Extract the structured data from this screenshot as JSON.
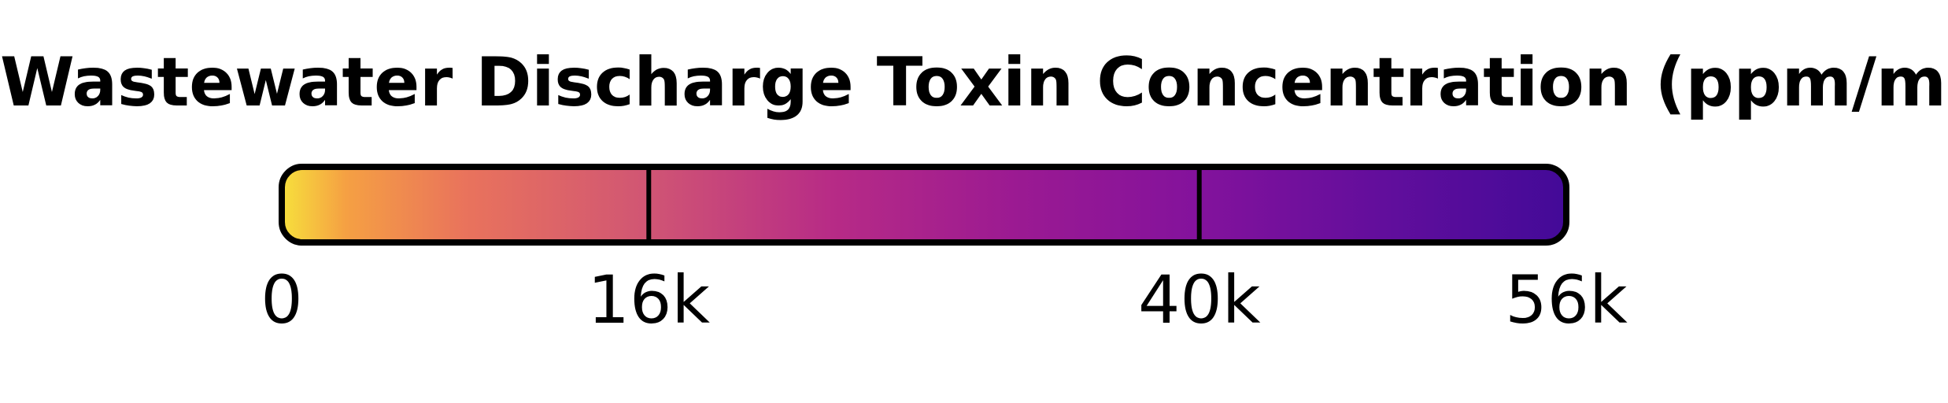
{
  "chart_data": {
    "type": "colorbar",
    "title": "Wastewater Discharge Toxin Concentration (ppm/m)",
    "colormap": "plasma",
    "range": [
      0,
      56000
    ],
    "gradient_stops": [
      {
        "value": 0,
        "color": "#f7e03c"
      },
      {
        "value": 2800,
        "color": "#f5a043"
      },
      {
        "value": 8000,
        "color": "#e9735c"
      },
      {
        "value": 16000,
        "color": "#d05574"
      },
      {
        "value": 24000,
        "color": "#b72b86"
      },
      {
        "value": 32000,
        "color": "#9b1a92"
      },
      {
        "value": 40000,
        "color": "#83129c"
      },
      {
        "value": 48000,
        "color": "#620e9c"
      },
      {
        "value": 56000,
        "color": "#430a98"
      }
    ],
    "dividers": [
      16000,
      40000
    ],
    "ticks": [
      {
        "value": 0,
        "label": "0"
      },
      {
        "value": 16000,
        "label": "16k"
      },
      {
        "value": 40000,
        "label": "40k"
      },
      {
        "value": 56000,
        "label": "56k"
      }
    ]
  }
}
